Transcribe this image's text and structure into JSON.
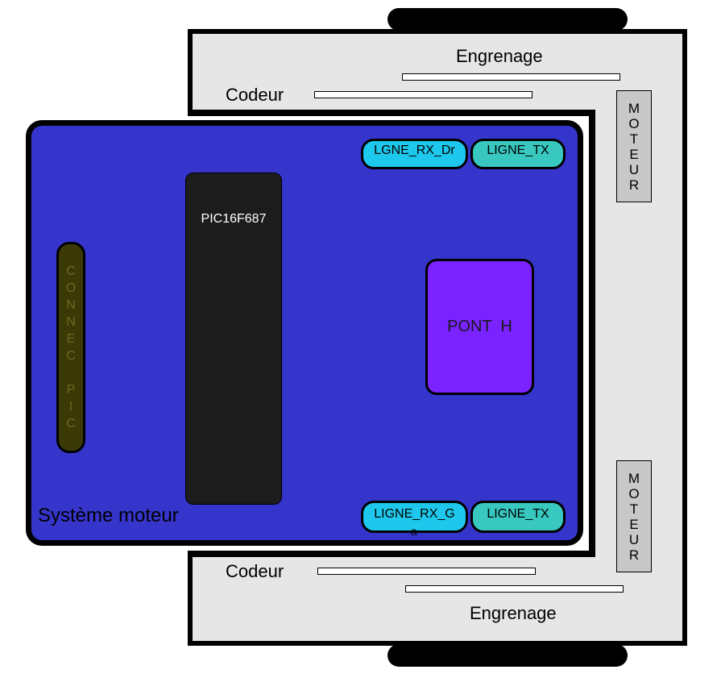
{
  "top_assembly": {
    "gear_label": "Engrenage",
    "encoder_label": "Codeur",
    "motor_letters": [
      "M",
      "O",
      "T",
      "E",
      "U",
      "R"
    ]
  },
  "bottom_assembly": {
    "gear_label": "Engrenage",
    "encoder_label": "Codeur",
    "motor_letters": [
      "M",
      "O",
      "T",
      "E",
      "U",
      "R"
    ]
  },
  "board": {
    "title": "Système moteur",
    "chip_label": "PIC16F687",
    "hbridge_label": "PONT  H",
    "connector_letters": [
      "C",
      "O",
      "N",
      "N",
      "E",
      "C",
      "",
      "P",
      "I",
      "C"
    ],
    "line_rx_right": "LGNE_RX_Dr",
    "line_tx_top": "LIGNE_TX",
    "line_rx_left": "LIGNE_RX_G",
    "line_rx_left_overflow": "a",
    "line_tx_bottom": "LIGNE_TX"
  },
  "colors": {
    "board": "#3535cc",
    "frame": "#e6e6e6",
    "hbridge": "#7a22ff",
    "pill_blue": "#1ec8ec",
    "pill_teal": "#38c8c0",
    "connector": "#3b3a07"
  }
}
